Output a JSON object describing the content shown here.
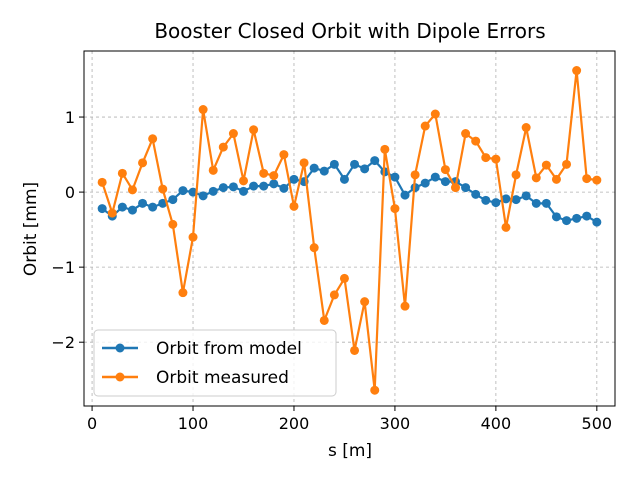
{
  "chart_data": {
    "type": "line",
    "title": "Booster Closed Orbit with Dipole Errors",
    "xlabel": "s [m]",
    "ylabel": "Orbit [mm]",
    "xlim": [
      -8,
      518
    ],
    "ylim": [
      -2.85,
      1.88
    ],
    "xticks": [
      0,
      100,
      200,
      300,
      400,
      500
    ],
    "yticks": [
      -2,
      -1,
      0,
      1
    ],
    "ytick_labels": [
      "−2",
      "−1",
      "0",
      "1"
    ],
    "grid": true,
    "legend_position": "lower-left",
    "x": [
      10,
      20,
      30,
      40,
      50,
      60,
      70,
      80,
      90,
      100,
      110,
      120,
      130,
      140,
      150,
      160,
      170,
      180,
      190,
      200,
      210,
      220,
      230,
      240,
      250,
      260,
      270,
      280,
      290,
      300,
      310,
      320,
      330,
      340,
      350,
      360,
      370,
      380,
      390,
      400,
      410,
      420,
      430,
      440,
      450,
      460,
      470,
      480,
      490,
      500
    ],
    "series": [
      {
        "name": "Orbit from model",
        "color": "#1f77b4",
        "values": [
          -0.22,
          -0.32,
          -0.2,
          -0.24,
          -0.15,
          -0.2,
          -0.15,
          -0.1,
          0.02,
          0.0,
          -0.05,
          0.01,
          0.06,
          0.07,
          0.01,
          0.08,
          0.08,
          0.11,
          0.05,
          0.17,
          0.14,
          0.32,
          0.28,
          0.37,
          0.17,
          0.37,
          0.31,
          0.42,
          0.27,
          0.2,
          -0.04,
          0.06,
          0.12,
          0.2,
          0.14,
          0.14,
          0.06,
          -0.03,
          -0.11,
          -0.14,
          -0.09,
          -0.1,
          -0.05,
          -0.15,
          -0.15,
          -0.33,
          -0.38,
          -0.35,
          -0.32,
          -0.4
        ]
      },
      {
        "name": "Orbit measured",
        "color": "#ff7f0e",
        "values": [
          0.13,
          -0.28,
          0.25,
          0.03,
          0.39,
          0.71,
          0.04,
          -0.43,
          -1.34,
          -0.6,
          1.1,
          0.29,
          0.6,
          0.78,
          0.15,
          0.83,
          0.25,
          0.22,
          0.5,
          -0.19,
          0.39,
          -0.74,
          -1.71,
          -1.37,
          -1.15,
          -2.11,
          -1.46,
          -2.64,
          0.57,
          -0.22,
          -1.52,
          0.23,
          0.88,
          1.04,
          0.3,
          0.06,
          0.78,
          0.68,
          0.46,
          0.44,
          -0.47,
          0.23,
          0.86,
          0.19,
          0.36,
          0.17,
          0.37,
          1.62,
          0.18,
          0.16
        ]
      }
    ]
  }
}
